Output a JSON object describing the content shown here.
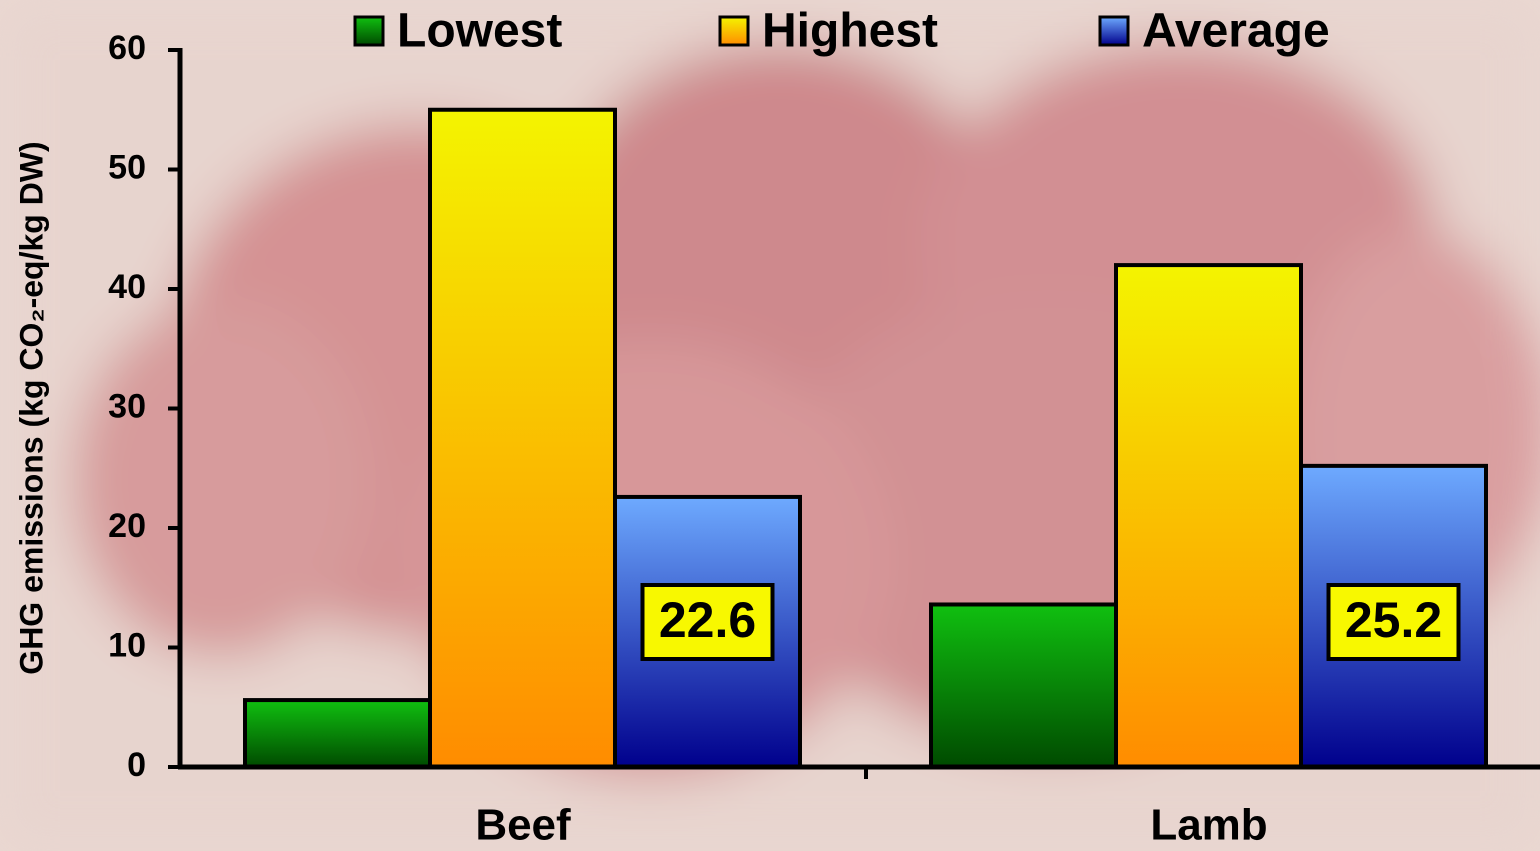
{
  "chart_data": {
    "type": "bar",
    "y_label": "GHG emissions (kg CO₂-eq/kg DW)",
    "categories": [
      "Beef",
      "Lamb"
    ],
    "series": [
      {
        "name": "Lowest",
        "color": "#10c010",
        "color_end": "#004a00",
        "values": [
          5.6,
          13.6
        ]
      },
      {
        "name": "Highest",
        "color": "#f4f400",
        "color_end": "#ff8c00",
        "values": [
          55,
          42
        ]
      },
      {
        "name": "Average",
        "color": "#6eaaff",
        "color_end": "#00008c",
        "values": [
          22.6,
          25.2
        ],
        "labeled": true
      }
    ],
    "ylim": [
      0,
      60
    ],
    "yticks": [
      0,
      10,
      20,
      30,
      40,
      50,
      60
    ]
  }
}
